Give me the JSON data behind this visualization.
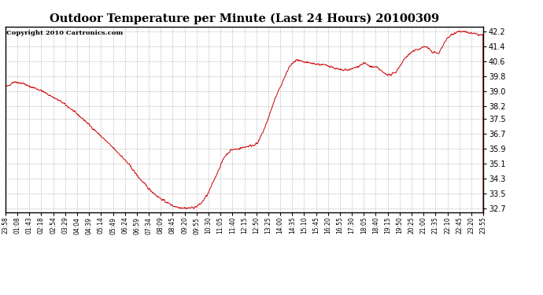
{
  "title": "Outdoor Temperature per Minute (Last 24 Hours) 20100309",
  "copyright": "Copyright 2010 Cartronics.com",
  "line_color": "#cc0000",
  "background_color": "#ffffff",
  "plot_bg_color": "#ffffff",
  "grid_color": "#aaaaaa",
  "y_ticks": [
    32.7,
    33.5,
    34.3,
    35.1,
    35.9,
    36.7,
    37.5,
    38.2,
    39.0,
    39.8,
    40.6,
    41.4,
    42.2
  ],
  "y_min": 32.5,
  "y_max": 42.45,
  "x_tick_labels": [
    "23:58",
    "01:08",
    "01:43",
    "02:18",
    "02:54",
    "03:29",
    "04:04",
    "04:39",
    "05:14",
    "05:49",
    "06:24",
    "06:59",
    "07:34",
    "08:09",
    "08:45",
    "09:20",
    "09:55",
    "10:30",
    "11:05",
    "11:40",
    "12:15",
    "12:50",
    "13:25",
    "14:00",
    "14:35",
    "15:10",
    "15:45",
    "16:20",
    "16:55",
    "17:30",
    "18:05",
    "18:40",
    "19:15",
    "19:50",
    "20:25",
    "21:00",
    "21:35",
    "22:10",
    "22:45",
    "23:20",
    "23:55"
  ],
  "keypoints_x": [
    0,
    10,
    25,
    40,
    55,
    70,
    90,
    110,
    140,
    170,
    200,
    240,
    275,
    310,
    345,
    375,
    400,
    430,
    455,
    475,
    490,
    505,
    520,
    535,
    548,
    560,
    575,
    590,
    610,
    635,
    660,
    680,
    700,
    720,
    745,
    760,
    785,
    810,
    830,
    855,
    875,
    895,
    915,
    935,
    955,
    975,
    995,
    1015,
    1040,
    1060,
    1080,
    1100,
    1120,
    1140,
    1160,
    1175,
    1190,
    1205,
    1225,
    1245,
    1265,
    1285,
    1305,
    1325,
    1345,
    1365,
    1385,
    1400,
    1415,
    1430,
    1439
  ],
  "keypoints_y": [
    39.2,
    39.3,
    39.5,
    39.45,
    39.4,
    39.25,
    39.15,
    39.0,
    38.7,
    38.4,
    38.0,
    37.4,
    36.8,
    36.2,
    35.6,
    35.0,
    34.4,
    33.8,
    33.4,
    33.15,
    33.0,
    32.85,
    32.78,
    32.75,
    32.73,
    32.75,
    32.8,
    33.0,
    33.5,
    34.5,
    35.5,
    35.85,
    35.9,
    36.0,
    36.1,
    36.2,
    37.2,
    38.5,
    39.3,
    40.3,
    40.65,
    40.55,
    40.5,
    40.45,
    40.4,
    40.35,
    40.2,
    40.1,
    40.15,
    40.3,
    40.5,
    40.3,
    40.25,
    39.95,
    39.85,
    40.0,
    40.4,
    40.8,
    41.1,
    41.25,
    41.4,
    41.1,
    41.0,
    41.7,
    42.05,
    42.2,
    42.15,
    42.1,
    42.05,
    42.0,
    42.0
  ]
}
